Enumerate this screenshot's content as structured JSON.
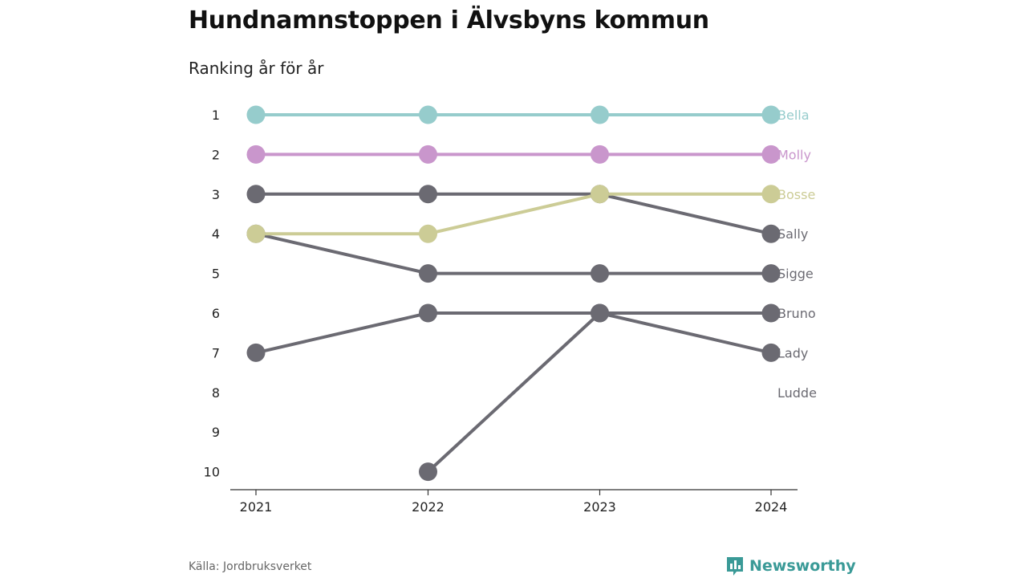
{
  "header": {
    "title": "Hundnamnstoppen i Älvsbyns kommun",
    "subtitle": "Ranking år för år"
  },
  "footer": {
    "source": "Källa: Jordbruksverket",
    "brand": "Newsworthy"
  },
  "colors": {
    "Bella": "#96cccc",
    "Molly": "#c996cc",
    "Bosse": "#cccc96",
    "other": "#6b6a72",
    "brand": "#3a9a97"
  },
  "icons": {
    "brand": "bar-chart-speech-icon"
  },
  "chart_data": {
    "type": "line",
    "x": [
      2021,
      2022,
      2023,
      2024
    ],
    "y_ticks": [
      1,
      2,
      3,
      4,
      5,
      6,
      7,
      8,
      9,
      10
    ],
    "ylim": [
      1,
      10
    ],
    "y_inverted": true,
    "grid": false,
    "legend": "end-labels",
    "series": [
      {
        "name": "Bella",
        "values": [
          1,
          1,
          1,
          1
        ]
      },
      {
        "name": "Molly",
        "values": [
          2,
          2,
          2,
          2
        ]
      },
      {
        "name": "Bosse",
        "values": [
          4,
          4,
          3,
          3
        ]
      },
      {
        "name": "Sally",
        "values": [
          3,
          3,
          3,
          4
        ]
      },
      {
        "name": "Sigge",
        "values": [
          4,
          5,
          5,
          5
        ]
      },
      {
        "name": "Bruno",
        "values": [
          7,
          6,
          6,
          6
        ]
      },
      {
        "name": "Lady",
        "values": [
          null,
          10,
          6,
          7
        ]
      },
      {
        "name": "Ludde",
        "values": [
          null,
          null,
          null,
          null
        ]
      }
    ]
  }
}
